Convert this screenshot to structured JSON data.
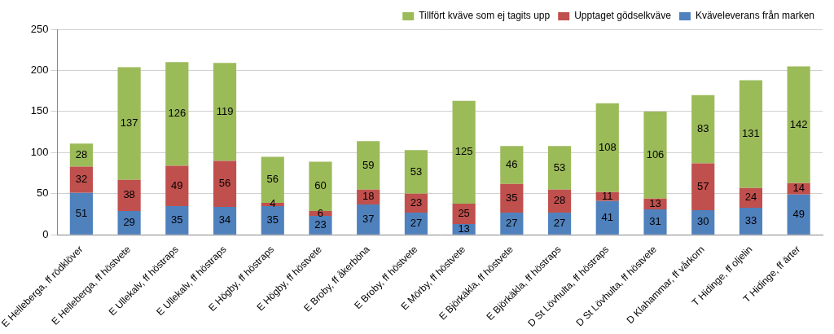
{
  "chart_data": {
    "type": "bar",
    "stacked": true,
    "categories": [
      "E Helleberga, ff rödklöver",
      "E Helleberga, ff höstvete",
      "E Ullekalv, ff höstraps",
      "E Ullekalv, ff höstraps",
      "E Högby, ff höstraps",
      "E Högby, ff höstvete",
      "E Broby, ff åkerböna",
      "E Broby, ff höstvete",
      "E Mörby, ff höstvete",
      "E Björkäkla, ff höstvete",
      "E Björkäkla, ff höstraps",
      "D St Lövhulta, ff höstraps",
      "D St Lövhulta, ff höstvete",
      "D Klahammar, ff vårkorn",
      "T Hidinge, ff oljelin",
      "T Hidinge, ff ärter"
    ],
    "series": [
      {
        "name": "Kväveleverans från marken",
        "color": "#4f81bd",
        "values": [
          51,
          29,
          35,
          34,
          35,
          23,
          37,
          27,
          13,
          27,
          27,
          41,
          31,
          30,
          33,
          49
        ]
      },
      {
        "name": "Upptaget gödselkväve",
        "color": "#c0504d",
        "values": [
          32,
          38,
          49,
          56,
          4,
          6,
          18,
          23,
          25,
          35,
          28,
          11,
          13,
          57,
          24,
          14
        ]
      },
      {
        "name": "Tillfört kväve som ej tagits upp",
        "color": "#9bbb59",
        "values": [
          28,
          137,
          126,
          119,
          56,
          60,
          59,
          53,
          125,
          46,
          53,
          108,
          106,
          83,
          131,
          142
        ]
      }
    ],
    "ylim": [
      0,
      250
    ],
    "yticks": [
      0,
      50,
      100,
      150,
      200,
      250
    ],
    "grid": true,
    "legend": "top-right",
    "data_labels": true
  }
}
